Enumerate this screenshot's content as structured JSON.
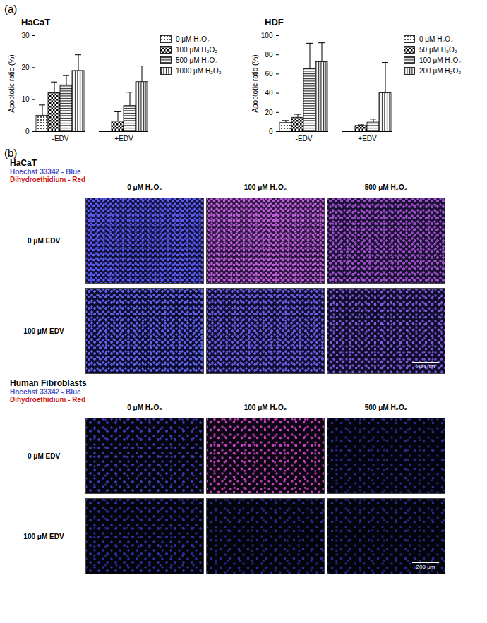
{
  "chart_data": [
    {
      "type": "bar",
      "title": "HaCaT",
      "y_label": "Apoptotic ratio (%)",
      "legend": "right",
      "categories": [
        "-EDV",
        "+EDV"
      ],
      "ylim": [
        0,
        30
      ],
      "yticks": [
        0,
        10,
        20,
        30
      ],
      "series": [
        {
          "name": "0 μM H₂O₂",
          "color": "#000000",
          "values": [
            5,
            null
          ],
          "errors": [
            3.3,
            null
          ]
        },
        {
          "name": "100 μM H₂O₂",
          "color": "#000000",
          "values": [
            12,
            3.2
          ],
          "errors": [
            3.5,
            3
          ]
        },
        {
          "name": "500 μM H₂O₂",
          "color": "#000000",
          "values": [
            14.5,
            8
          ],
          "errors": [
            3,
            4.3
          ]
        },
        {
          "name": "1000 μM H₂O₂",
          "color": "#000000",
          "values": [
            19,
            15.5
          ],
          "errors": [
            5,
            5
          ]
        }
      ]
    },
    {
      "type": "bar",
      "title": "HDF",
      "y_label": "Apoptotic ratio (%)",
      "legend": "right",
      "categories": [
        "-EDV",
        "+EDV"
      ],
      "ylim": [
        0,
        100
      ],
      "yticks": [
        0,
        20,
        40,
        60,
        80,
        100
      ],
      "series": [
        {
          "name": "0 μM H₂O₂",
          "color": "#000000",
          "values": [
            9,
            null
          ],
          "errors": [
            2.5,
            null
          ]
        },
        {
          "name": "50 μM H₂O₂",
          "color": "#000000",
          "values": [
            14.5,
            6
          ],
          "errors": [
            3.5,
            1
          ]
        },
        {
          "name": "100 μM H₂O₂",
          "color": "#000000",
          "values": [
            65,
            9.5
          ],
          "errors": [
            27,
            3.5
          ]
        },
        {
          "name": "200 μM H₂O₂",
          "color": "#000000",
          "values": [
            72.5,
            40
          ],
          "errors": [
            20,
            32
          ]
        }
      ]
    }
  ],
  "panel_a_label": "(a)",
  "panel_b": {
    "label": "(b)",
    "groups": [
      {
        "title": "HaCaT",
        "stains": [
          "Hoechst 33342 - Blue",
          "Dihydroethidium - Red"
        ],
        "columns": [
          "0 μM H₂O₂",
          "100 μM H₂O₂",
          "500 μM H₂O₂"
        ],
        "rows": [
          "0 μM EDV",
          "100 μM EDV"
        ],
        "scale_bar": "200 μm"
      },
      {
        "title": "Human Fibroblasts",
        "stains": [
          "Hoechst 33342 - Blue",
          "Dihydroethidium - Red"
        ],
        "columns": [
          "0 μM H₂O₂",
          "100 μM H₂O₂",
          "500 μM H₂O₂"
        ],
        "rows": [
          "0 μM EDV",
          "100 μM EDV"
        ],
        "scale_bar": "200 μm"
      }
    ]
  }
}
